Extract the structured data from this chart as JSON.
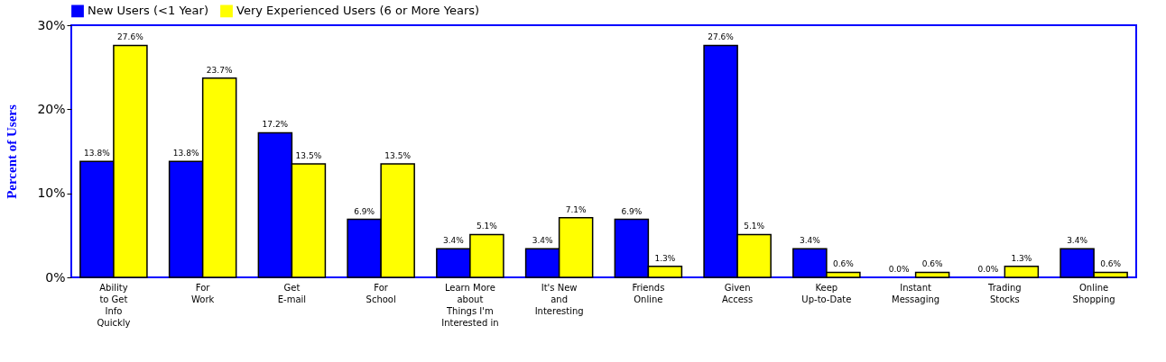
{
  "chart_data": {
    "type": "bar",
    "ylabel": "Percent of Users",
    "categories": [
      "Ability\nto Get\nInfo\nQuickly",
      "For\nWork",
      "Get\nE-mail",
      "For\nSchool",
      "Learn More\nabout\nThings I'm\nInterested in",
      "It's New\nand\nInteresting",
      "Friends\nOnline",
      "Given\nAccess",
      "Keep\nUp-to-Date",
      "Instant\nMessaging",
      "Trading\nStocks",
      "Online\nShopping"
    ],
    "series": [
      {
        "name": "New Users (<1 Year)",
        "color": "#0000ff",
        "values": [
          13.8,
          13.8,
          17.2,
          6.9,
          3.4,
          3.4,
          6.9,
          27.6,
          3.4,
          0.0,
          0.0,
          3.4
        ],
        "value_labels": [
          "13.8%",
          "13.8%",
          "17.2%",
          "6.9%",
          "3.4%",
          "3.4%",
          "6.9%",
          "27.6%",
          "3.4%",
          "0.0%",
          "0.0%",
          "3.4%"
        ]
      },
      {
        "name": "Very Experienced Users (6 or More Years)",
        "color": "#ffff00",
        "values": [
          27.6,
          23.7,
          13.5,
          13.5,
          5.1,
          7.1,
          1.3,
          5.1,
          0.6,
          0.6,
          1.3,
          0.6
        ],
        "value_labels": [
          "27.6%",
          "23.7%",
          "13.5%",
          "13.5%",
          "5.1%",
          "7.1%",
          "1.3%",
          "5.1%",
          "0.6%",
          "0.6%",
          "1.3%",
          "0.6%"
        ]
      }
    ],
    "ylim": [
      0,
      30
    ],
    "yticks": [
      {
        "value": 0,
        "label": "0%"
      },
      {
        "value": 10,
        "label": "10%"
      },
      {
        "value": 20,
        "label": "20%"
      },
      {
        "value": 30,
        "label": "30%"
      }
    ],
    "grid": false,
    "legend": "top"
  }
}
